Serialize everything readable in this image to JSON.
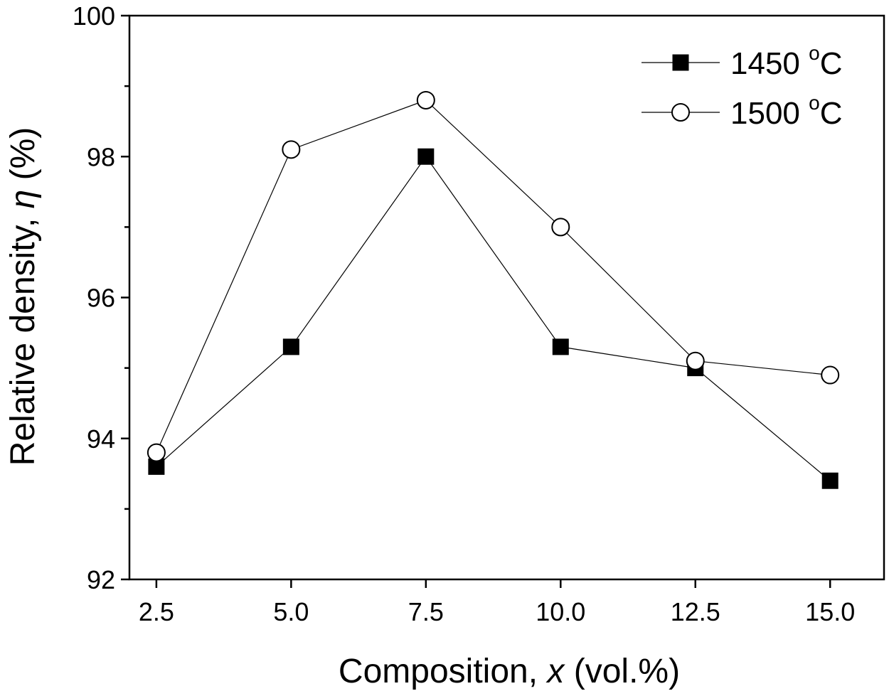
{
  "chart_data": {
    "type": "line",
    "title": "",
    "xlabel": {
      "prefix": "Composition, ",
      "var": "x",
      "suffix": " (vol.%)"
    },
    "ylabel": {
      "prefix": "Relative density, ",
      "var": "η",
      "suffix": " (%)"
    },
    "xlim": [
      2.0,
      16.0
    ],
    "ylim": [
      92,
      100
    ],
    "x": [
      2.5,
      5.0,
      7.5,
      10.0,
      12.5,
      15.0
    ],
    "x_tick_labels": [
      "2.5",
      "5.0",
      "7.5",
      "10.0",
      "12.5",
      "15.0"
    ],
    "y_ticks": [
      92,
      94,
      96,
      98,
      100
    ],
    "y_tick_labels": [
      "92",
      "94",
      "96",
      "98",
      "100"
    ],
    "y_minor_ticks": [
      93,
      95,
      97,
      99
    ],
    "grid": false,
    "legend_position": "top-right",
    "series": [
      {
        "name": "1450 °C",
        "label_num": "1450",
        "label_unit": "C",
        "marker": "filled-square",
        "values": [
          93.6,
          95.3,
          98.0,
          95.3,
          95.0,
          93.4
        ]
      },
      {
        "name": "1500 °C",
        "label_num": "1500",
        "label_unit": "C",
        "marker": "open-circle",
        "values": [
          93.8,
          98.1,
          98.8,
          97.0,
          95.1,
          94.9
        ]
      }
    ],
    "degree_symbol": "o",
    "colors": {
      "line": "#000000",
      "marker_fill_filled": "#000000",
      "marker_fill_open": "#ffffff"
    }
  }
}
